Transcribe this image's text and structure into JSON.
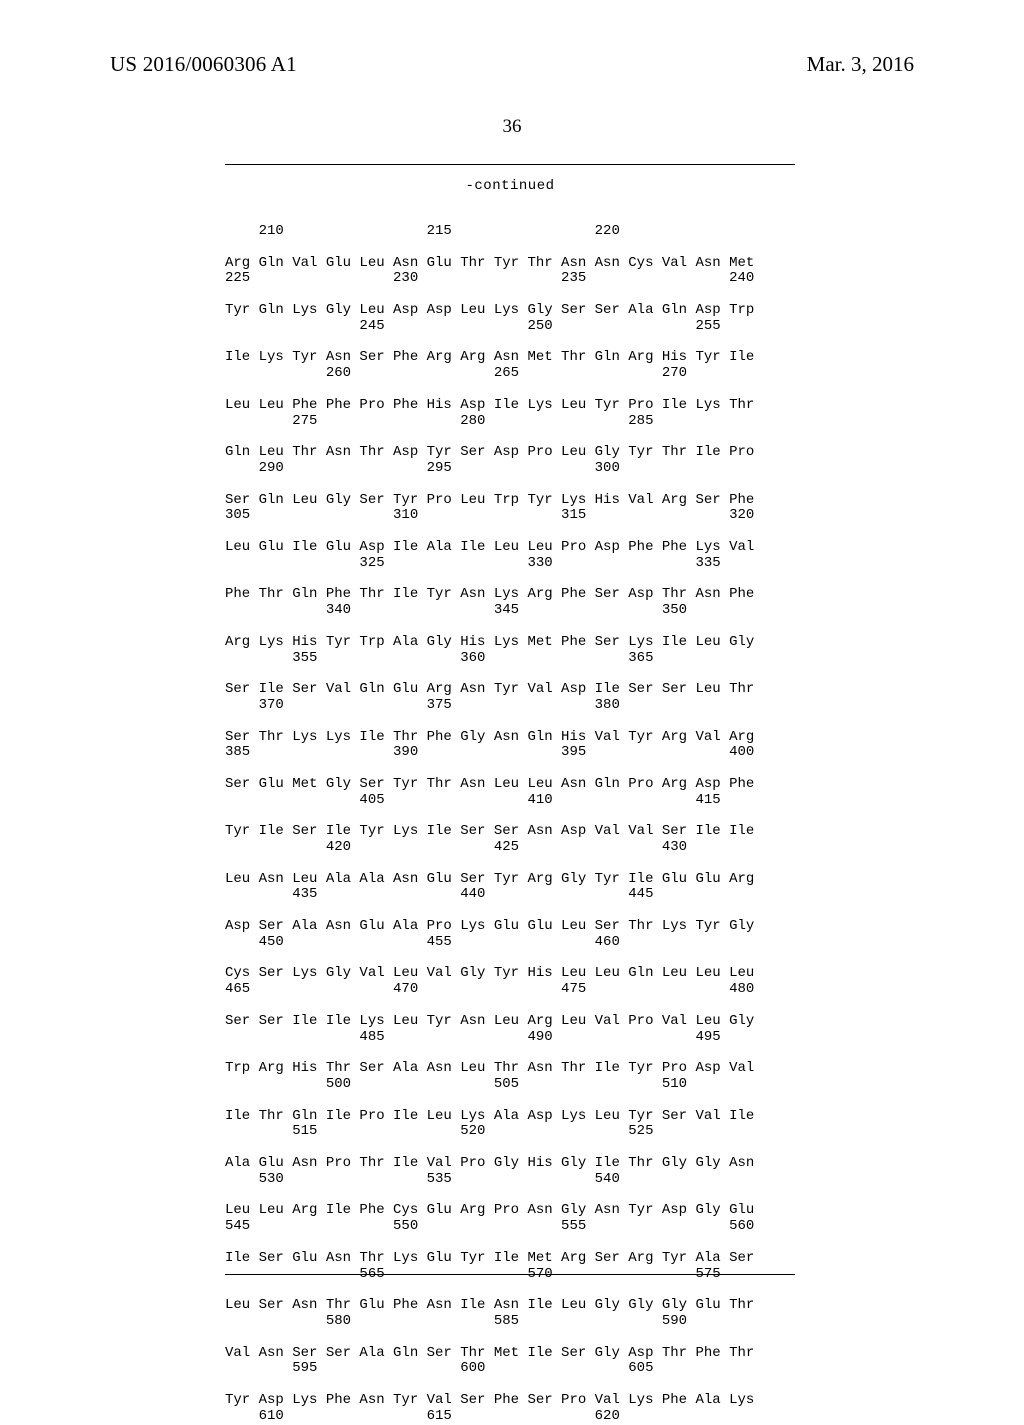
{
  "header": {
    "publication_number": "US 2016/0060306 A1",
    "publication_date": "Mar. 3, 2016",
    "page_number": "36"
  },
  "labels": {
    "continued": "-continued"
  },
  "sequence_text": "    210                 215                 220\n\nArg Gln Val Glu Leu Asn Glu Thr Tyr Thr Asn Asn Cys Val Asn Met\n225                 230                 235                 240\n\nTyr Gln Lys Gly Leu Asp Asp Leu Lys Gly Ser Ser Ala Gln Asp Trp\n                245                 250                 255\n\nIle Lys Tyr Asn Ser Phe Arg Arg Asn Met Thr Gln Arg His Tyr Ile\n            260                 265                 270\n\nLeu Leu Phe Phe Pro Phe His Asp Ile Lys Leu Tyr Pro Ile Lys Thr\n        275                 280                 285\n\nGln Leu Thr Asn Thr Asp Tyr Ser Asp Pro Leu Gly Tyr Thr Ile Pro\n    290                 295                 300\n\nSer Gln Leu Gly Ser Tyr Pro Leu Trp Tyr Lys His Val Arg Ser Phe\n305                 310                 315                 320\n\nLeu Glu Ile Glu Asp Ile Ala Ile Leu Leu Pro Asp Phe Phe Lys Val\n                325                 330                 335\n\nPhe Thr Gln Phe Thr Ile Tyr Asn Lys Arg Phe Ser Asp Thr Asn Phe\n            340                 345                 350\n\nArg Lys His Tyr Trp Ala Gly His Lys Met Phe Ser Lys Ile Leu Gly\n        355                 360                 365\n\nSer Ile Ser Val Gln Glu Arg Asn Tyr Val Asp Ile Ser Ser Leu Thr\n    370                 375                 380\n\nSer Thr Lys Lys Ile Thr Phe Gly Asn Gln His Val Tyr Arg Val Arg\n385                 390                 395                 400\n\nSer Glu Met Gly Ser Tyr Thr Asn Leu Leu Asn Gln Pro Arg Asp Phe\n                405                 410                 415\n\nTyr Ile Ser Ile Tyr Lys Ile Ser Ser Asn Asp Val Val Ser Ile Ile\n            420                 425                 430\n\nLeu Asn Leu Ala Ala Asn Glu Ser Tyr Arg Gly Tyr Ile Glu Glu Arg\n        435                 440                 445\n\nAsp Ser Ala Asn Glu Ala Pro Lys Glu Glu Leu Ser Thr Lys Tyr Gly\n    450                 455                 460\n\nCys Ser Lys Gly Val Leu Val Gly Tyr His Leu Leu Gln Leu Leu Leu\n465                 470                 475                 480\n\nSer Ser Ile Ile Lys Leu Tyr Asn Leu Arg Leu Val Pro Val Leu Gly\n                485                 490                 495\n\nTrp Arg His Thr Ser Ala Asn Leu Thr Asn Thr Ile Tyr Pro Asp Val\n            500                 505                 510\n\nIle Thr Gln Ile Pro Ile Leu Lys Ala Asp Lys Leu Tyr Ser Val Ile\n        515                 520                 525\n\nAla Glu Asn Pro Thr Ile Val Pro Gly His Gly Ile Thr Gly Gly Asn\n    530                 535                 540\n\nLeu Leu Arg Ile Phe Cys Glu Arg Pro Asn Gly Asn Tyr Asp Gly Glu\n545                 550                 555                 560\n\nIle Ser Glu Asn Thr Lys Glu Tyr Ile Met Arg Ser Arg Tyr Ala Ser\n                565                 570                 575\n\nLeu Ser Asn Thr Glu Phe Asn Ile Asn Ile Leu Gly Gly Gly Glu Thr\n            580                 585                 590\n\nVal Asn Ser Ser Ala Gln Ser Thr Met Ile Ser Gly Asp Thr Phe Thr\n        595                 600                 605\n\nTyr Asp Lys Phe Asn Tyr Val Ser Phe Ser Pro Val Lys Phe Ala Lys\n    610                 615                 620"
}
